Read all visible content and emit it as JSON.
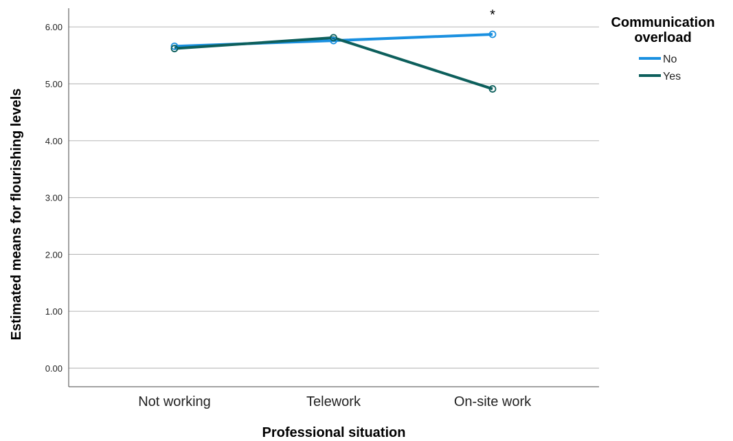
{
  "chart_data": {
    "type": "line",
    "xlabel": "Professional situation",
    "ylabel": "Estimated means for flourishing levels",
    "categories": [
      "Not working",
      "Telework",
      "On-site work"
    ],
    "ylim": [
      0,
      6.35
    ],
    "yticks": [
      0,
      1,
      2,
      3,
      4,
      5,
      6
    ],
    "ytick_labels": [
      "0.00",
      "1.00",
      "2.00",
      "3.00",
      "4.00",
      "5.00",
      "6.00"
    ],
    "grid": true,
    "legend": {
      "title": "Communication overload",
      "title_lines": [
        "Communication",
        "overload"
      ],
      "placement": "right"
    },
    "series": [
      {
        "name": "No",
        "color": "#1a90e0",
        "values": [
          5.66,
          5.76,
          5.87
        ]
      },
      {
        "name": "Yes",
        "color": "#0d5f5c",
        "values": [
          5.62,
          5.81,
          4.91
        ]
      }
    ],
    "annotations": [
      {
        "text": "*",
        "category": "On-site work"
      }
    ]
  }
}
